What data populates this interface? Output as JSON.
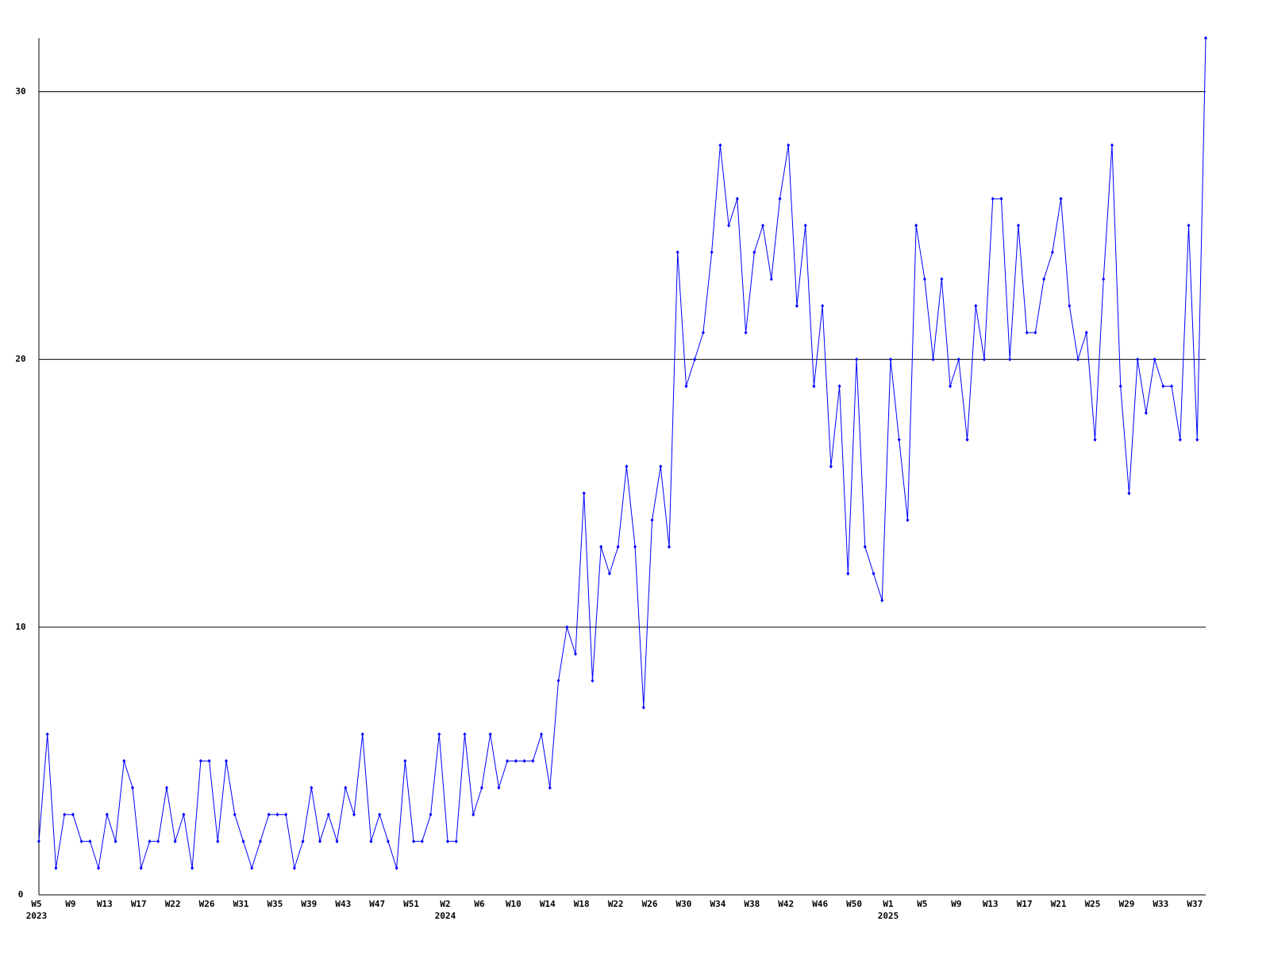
{
  "chart_data": {
    "type": "line",
    "categories": [
      "W5",
      null,
      null,
      null,
      "W9",
      null,
      null,
      null,
      "W13",
      null,
      null,
      null,
      "W17",
      null,
      null,
      null,
      "W22",
      null,
      null,
      null,
      "W26",
      null,
      null,
      null,
      "W31",
      null,
      null,
      null,
      "W35",
      null,
      null,
      null,
      "W39",
      null,
      null,
      null,
      "W43",
      null,
      null,
      null,
      "W47",
      null,
      null,
      null,
      "W51",
      null,
      null,
      null,
      "W2",
      null,
      null,
      null,
      "W6",
      null,
      null,
      null,
      "W10",
      null,
      null,
      null,
      "W14",
      null,
      null,
      null,
      "W18",
      null,
      null,
      null,
      "W22",
      null,
      null,
      null,
      "W26",
      null,
      null,
      null,
      "W30",
      null,
      null,
      null,
      "W34",
      null,
      null,
      null,
      "W38",
      null,
      null,
      null,
      "W42",
      null,
      null,
      null,
      "W46",
      null,
      null,
      null,
      "W50",
      null,
      null,
      null,
      "W1",
      null,
      null,
      null,
      "W5",
      null,
      null,
      null,
      "W9",
      null,
      null,
      null,
      "W13",
      null,
      null,
      null,
      "W17",
      null,
      null,
      null,
      "W21",
      null,
      null,
      null,
      "W25",
      null,
      null,
      null,
      "W29",
      null,
      null,
      null,
      "W33",
      null,
      null,
      null,
      "W37",
      null
    ],
    "category_years": [
      "2023",
      null,
      null,
      null,
      null,
      null,
      null,
      null,
      null,
      null,
      null,
      null,
      null,
      null,
      null,
      null,
      null,
      null,
      null,
      null,
      null,
      null,
      null,
      null,
      null,
      null,
      null,
      null,
      null,
      null,
      null,
      null,
      null,
      null,
      null,
      null,
      null,
      null,
      null,
      null,
      null,
      null,
      null,
      null,
      null,
      null,
      null,
      null,
      "2024",
      null,
      null,
      null,
      null,
      null,
      null,
      null,
      null,
      null,
      null,
      null,
      null,
      null,
      null,
      null,
      null,
      null,
      null,
      null,
      null,
      null,
      null,
      null,
      null,
      null,
      null,
      null,
      null,
      null,
      null,
      null,
      null,
      null,
      null,
      null,
      null,
      null,
      null,
      null,
      null,
      null,
      null,
      null,
      null,
      null,
      null,
      null,
      null,
      null,
      null,
      null,
      "2025",
      null,
      null,
      null,
      null,
      null,
      null,
      null,
      null,
      null,
      null,
      null,
      null,
      null,
      null,
      null,
      null,
      null,
      null,
      null,
      null,
      null,
      null,
      null,
      null,
      null,
      null,
      null,
      null,
      null,
      null,
      null,
      null,
      null,
      null,
      null,
      null,
      null
    ],
    "series": [
      {
        "color": "#0000ff",
        "values": [
          2,
          6,
          1,
          3,
          3,
          2,
          2,
          1,
          3,
          2,
          5,
          4,
          1,
          2,
          2,
          4,
          2,
          3,
          1,
          5,
          5,
          2,
          5,
          3,
          2,
          1,
          2,
          3,
          3,
          3,
          1,
          2,
          4,
          2,
          3,
          2,
          4,
          3,
          6,
          2,
          3,
          2,
          1,
          5,
          2,
          2,
          3,
          6,
          2,
          2,
          6,
          3,
          4,
          6,
          4,
          5,
          5,
          5,
          5,
          6,
          4,
          8,
          10,
          9,
          15,
          8,
          13,
          12,
          13,
          16,
          13,
          7,
          14,
          16,
          13,
          24,
          19,
          20,
          21,
          24,
          28,
          25,
          26,
          21,
          24,
          25,
          23,
          26,
          28,
          22,
          25,
          19,
          22,
          16,
          19,
          12,
          20,
          13,
          12,
          11,
          20,
          17,
          14,
          25,
          23,
          20,
          23,
          19,
          20,
          17,
          22,
          20,
          26,
          26,
          20,
          25,
          21,
          21,
          23,
          24,
          26,
          22,
          20,
          21,
          17,
          23,
          28,
          19,
          15,
          20,
          18,
          20,
          19,
          19,
          17,
          25,
          17,
          32
        ]
      }
    ],
    "ylim": [
      0,
      32
    ],
    "yticks": [
      0,
      10,
      20,
      30
    ],
    "grid": true
  }
}
